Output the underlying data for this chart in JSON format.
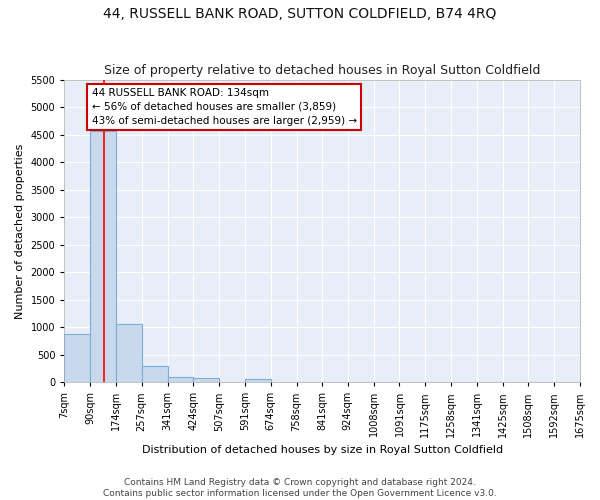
{
  "title": "44, RUSSELL BANK ROAD, SUTTON COLDFIELD, B74 4RQ",
  "subtitle": "Size of property relative to detached houses in Royal Sutton Coldfield",
  "xlabel": "Distribution of detached houses by size in Royal Sutton Coldfield",
  "ylabel": "Number of detached properties",
  "footer_line1": "Contains HM Land Registry data © Crown copyright and database right 2024.",
  "footer_line2": "Contains public sector information licensed under the Open Government Licence v3.0.",
  "annotation_line1": "44 RUSSELL BANK ROAD: 134sqm",
  "annotation_line2": "← 56% of detached houses are smaller (3,859)",
  "annotation_line3": "43% of semi-detached houses are larger (2,959) →",
  "bins": [
    7,
    90,
    174,
    257,
    341,
    424,
    507,
    591,
    674,
    758,
    841,
    924,
    1008,
    1091,
    1175,
    1258,
    1341,
    1425,
    1508,
    1592,
    1675
  ],
  "bin_labels": [
    "7sqm",
    "90sqm",
    "174sqm",
    "257sqm",
    "341sqm",
    "424sqm",
    "507sqm",
    "591sqm",
    "674sqm",
    "758sqm",
    "841sqm",
    "924sqm",
    "1008sqm",
    "1091sqm",
    "1175sqm",
    "1258sqm",
    "1341sqm",
    "1425sqm",
    "1508sqm",
    "1592sqm",
    "1675sqm"
  ],
  "bar_heights": [
    880,
    4560,
    1060,
    285,
    90,
    80,
    0,
    55,
    0,
    0,
    0,
    0,
    0,
    0,
    0,
    0,
    0,
    0,
    0,
    0
  ],
  "bar_color": "#c8d9ee",
  "bar_edge_color": "#7aaed6",
  "red_line_x": 134,
  "ylim": [
    0,
    5500
  ],
  "yticks": [
    0,
    500,
    1000,
    1500,
    2000,
    2500,
    3000,
    3500,
    4000,
    4500,
    5000,
    5500
  ],
  "bg_color": "#e8eef8",
  "grid_color": "#ffffff",
  "annotation_box_color": "#ffffff",
  "annotation_box_edge": "#cc0000",
  "title_fontsize": 10,
  "subtitle_fontsize": 9,
  "xlabel_fontsize": 8,
  "ylabel_fontsize": 8,
  "tick_fontsize": 7,
  "annotation_fontsize": 7.5,
  "footer_fontsize": 6.5
}
